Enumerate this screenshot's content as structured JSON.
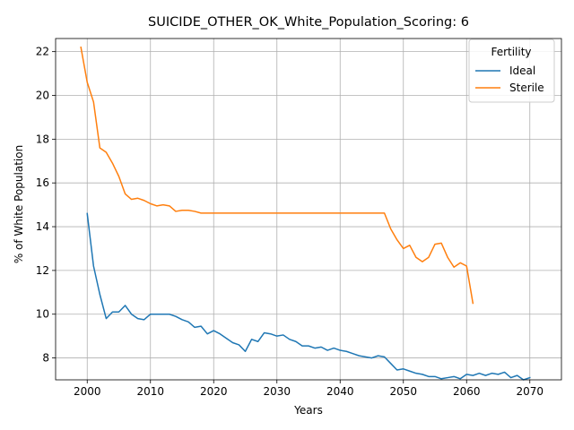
{
  "chart_data": {
    "type": "line",
    "title": "SUICIDE_OTHER_OK_White_Population_Scoring: 6",
    "xlabel": "Years",
    "ylabel": "% of White Population",
    "xlim": [
      1995,
      2075
    ],
    "ylim": [
      7.0,
      22.6
    ],
    "xticks": [
      2000,
      2010,
      2020,
      2030,
      2040,
      2050,
      2060,
      2070
    ],
    "yticks": [
      8,
      10,
      12,
      14,
      16,
      18,
      20,
      22
    ],
    "grid": true,
    "legend": {
      "title": "Fertility",
      "placement": "top-right"
    },
    "series": [
      {
        "name": "Ideal",
        "color": "#1f77b4",
        "x": [
          2000,
          2001,
          2002,
          2003,
          2004,
          2005,
          2006,
          2007,
          2008,
          2009,
          2010,
          2011,
          2012,
          2013,
          2014,
          2015,
          2016,
          2017,
          2018,
          2019,
          2020,
          2021,
          2022,
          2023,
          2024,
          2025,
          2026,
          2027,
          2028,
          2029,
          2030,
          2031,
          2032,
          2033,
          2034,
          2035,
          2036,
          2037,
          2038,
          2039,
          2040,
          2041,
          2042,
          2043,
          2044,
          2045,
          2046,
          2047,
          2048,
          2049,
          2050,
          2051,
          2052,
          2053,
          2054,
          2055,
          2056,
          2057,
          2058,
          2059,
          2060,
          2061,
          2062,
          2063,
          2064,
          2065,
          2066,
          2067,
          2068,
          2069,
          2070
        ],
        "y": [
          14.6,
          12.2,
          10.9,
          9.8,
          10.1,
          10.1,
          10.4,
          10.0,
          9.8,
          9.75,
          10.0,
          10.0,
          10.0,
          10.0,
          9.9,
          9.75,
          9.65,
          9.4,
          9.45,
          9.1,
          9.25,
          9.1,
          8.9,
          8.7,
          8.6,
          8.3,
          8.85,
          8.75,
          9.15,
          9.1,
          9.0,
          9.05,
          8.85,
          8.75,
          8.55,
          8.55,
          8.45,
          8.5,
          8.35,
          8.45,
          8.35,
          8.3,
          8.2,
          8.1,
          8.05,
          8.0,
          8.1,
          8.05,
          7.75,
          7.45,
          7.5,
          7.4,
          7.3,
          7.25,
          7.15,
          7.15,
          7.05,
          7.1,
          7.15,
          7.05,
          7.25,
          7.2,
          7.3,
          7.2,
          7.3,
          7.25,
          7.35,
          7.1,
          7.2,
          7.0,
          7.1
        ]
      },
      {
        "name": "Sterile",
        "color": "#ff7f0e",
        "x": [
          1999,
          2000,
          2001,
          2002,
          2003,
          2004,
          2005,
          2006,
          2007,
          2008,
          2009,
          2010,
          2011,
          2012,
          2013,
          2014,
          2015,
          2016,
          2017,
          2018,
          2019,
          2020,
          2021,
          2022,
          2023,
          2024,
          2025,
          2026,
          2027,
          2028,
          2029,
          2030,
          2031,
          2032,
          2033,
          2034,
          2035,
          2036,
          2037,
          2038,
          2039,
          2040,
          2041,
          2042,
          2043,
          2044,
          2045,
          2046,
          2047,
          2048,
          2049,
          2050,
          2051,
          2052,
          2053,
          2054,
          2055,
          2056,
          2057,
          2058,
          2059,
          2060,
          2061
        ],
        "y": [
          22.2,
          20.6,
          19.7,
          17.6,
          17.4,
          16.9,
          16.3,
          15.5,
          15.25,
          15.3,
          15.2,
          15.05,
          14.95,
          15.0,
          14.95,
          14.7,
          14.75,
          14.75,
          14.7,
          14.62,
          14.62,
          14.62,
          14.62,
          14.62,
          14.62,
          14.62,
          14.62,
          14.62,
          14.62,
          14.62,
          14.62,
          14.62,
          14.62,
          14.62,
          14.62,
          14.62,
          14.62,
          14.62,
          14.62,
          14.62,
          14.62,
          14.62,
          14.62,
          14.62,
          14.62,
          14.62,
          14.62,
          14.62,
          14.62,
          13.9,
          13.4,
          13.0,
          13.15,
          12.6,
          12.4,
          12.6,
          13.2,
          13.25,
          12.6,
          12.15,
          12.35,
          12.2,
          10.5
        ]
      }
    ]
  }
}
